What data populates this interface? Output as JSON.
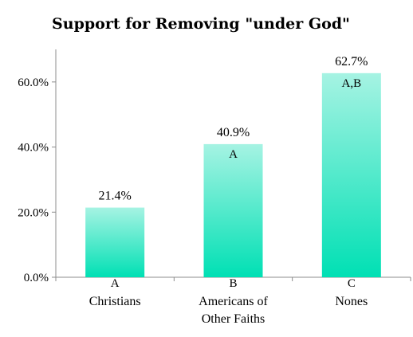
{
  "chart_data": {
    "type": "bar",
    "title": "Support for Removing \"under God\"",
    "categories": [
      "Christians",
      "Americans of Other Faiths",
      "Nones"
    ],
    "category_lines": [
      [
        "Christians"
      ],
      [
        "Americans of",
        "Other Faiths"
      ],
      [
        "Nones"
      ]
    ],
    "group_letters": [
      "A",
      "B",
      "C"
    ],
    "values": [
      21.4,
      40.9,
      62.7
    ],
    "value_labels": [
      "21.4%",
      "40.9%",
      "62.7%"
    ],
    "significance_labels": [
      "",
      "A",
      "A,B"
    ],
    "ylim": [
      0,
      70
    ],
    "yticks": [
      0,
      20,
      40,
      60
    ],
    "ytick_labels": [
      "0.0%",
      "20.0%",
      "40.0%",
      "60.0%"
    ],
    "xlabel": "",
    "ylabel": "",
    "grid": false,
    "legend": "none",
    "colors": {
      "bar_top": "#a6f3e3",
      "bar_bottom": "#00e0b4",
      "axis": "#8c8c8c"
    }
  }
}
